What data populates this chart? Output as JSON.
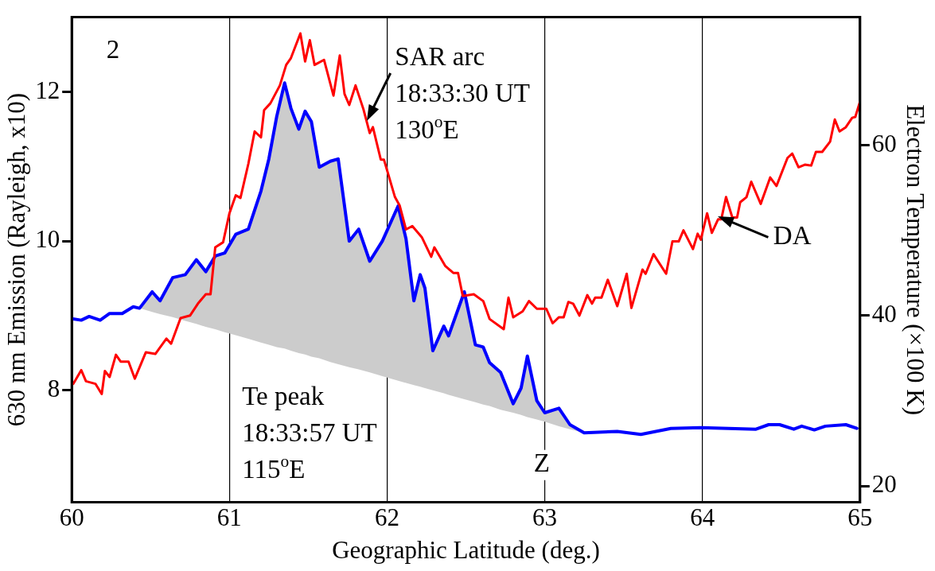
{
  "chart_data": {
    "type": "line",
    "xlabel": "Geographic Latitude (deg.)",
    "ylabel": "630 nm Emission (Rayleigh, x10)",
    "y2label": "Electron Temperature (×100 K)",
    "xlim": [
      60,
      65
    ],
    "xticks": [
      60,
      61,
      62,
      63,
      64,
      65
    ],
    "ylim": [
      6.5,
      13.0
    ],
    "yticks": [
      8,
      10,
      12
    ],
    "y2lim": [
      18.1,
      75.0
    ],
    "y2ticks": [
      20,
      40,
      60
    ],
    "grid": "x",
    "legend": false,
    "marker": "none",
    "line_style": "solid",
    "annotations": [
      "2",
      {
        "text": "SAR arc\n18:33:30 UT\n130$^{o}$E",
        "x": 61.87,
        "y": 11.61
      },
      "Te peak\n18:33:57 UT\n115$^{o}$E",
      "Z",
      {
        "text": "DA",
        "x": 64.1,
        "y": 10.33
      }
    ],
    "series": [
      {
        "color": "#0000ff",
        "axis": "y",
        "x": [
          60.0,
          60.06,
          60.11,
          60.18,
          60.24,
          60.32,
          60.39,
          60.43,
          60.51,
          60.56,
          60.64,
          60.72,
          60.79,
          60.85,
          60.91,
          60.97,
          61.04,
          61.12,
          61.2,
          61.25,
          61.3,
          61.35,
          61.39,
          61.44,
          61.48,
          61.52,
          61.57,
          61.64,
          61.69,
          61.76,
          61.82,
          61.89,
          61.97,
          62.07,
          62.12,
          62.17,
          62.21,
          62.24,
          62.29,
          62.36,
          62.39,
          62.49,
          62.56,
          62.61,
          62.65,
          62.72,
          62.8,
          62.85,
          62.89,
          62.95,
          63.0,
          63.09,
          63.16,
          63.25,
          63.46,
          63.61,
          63.8,
          63.99,
          64.34,
          64.42,
          64.49,
          64.58,
          64.63,
          64.71,
          64.78,
          64.91,
          64.98
        ],
        "values": [
          8.96,
          8.94,
          8.99,
          8.94,
          9.03,
          9.03,
          9.12,
          9.1,
          9.32,
          9.2,
          9.51,
          9.55,
          9.75,
          9.59,
          9.8,
          9.84,
          10.09,
          10.16,
          10.67,
          11.1,
          11.67,
          12.12,
          11.78,
          11.5,
          11.74,
          11.6,
          10.99,
          11.07,
          11.1,
          10.0,
          10.16,
          9.73,
          10.0,
          10.47,
          10.03,
          9.2,
          9.55,
          9.37,
          8.53,
          8.86,
          8.73,
          9.32,
          8.61,
          8.58,
          8.37,
          8.24,
          7.82,
          8.03,
          8.46,
          7.86,
          7.7,
          7.76,
          7.54,
          7.43,
          7.45,
          7.41,
          7.49,
          7.5,
          7.48,
          7.54,
          7.54,
          7.48,
          7.52,
          7.47,
          7.52,
          7.54,
          7.49
        ],
        "lower": [
          null,
          null,
          null,
          null,
          null,
          null,
          null,
          9.1,
          9.05,
          9.02,
          8.98,
          8.93,
          8.89,
          8.85,
          8.82,
          8.78,
          8.74,
          8.69,
          8.64,
          8.61,
          8.58,
          8.56,
          8.53,
          8.5,
          8.48,
          8.45,
          8.43,
          8.38,
          8.35,
          8.31,
          8.28,
          8.24,
          8.19,
          8.13,
          8.1,
          8.07,
          8.05,
          8.03,
          8.0,
          7.96,
          7.94,
          7.88,
          7.84,
          7.81,
          7.79,
          7.74,
          7.7,
          7.67,
          7.64,
          7.61,
          7.58,
          7.52,
          7.48,
          7.43,
          null,
          null,
          null,
          null,
          null,
          null,
          null,
          null,
          null,
          null,
          null,
          null,
          null
        ],
        "upper": [
          null,
          null,
          null,
          null,
          null,
          null,
          null,
          9.1,
          9.32,
          9.2,
          9.51,
          9.55,
          9.75,
          9.59,
          9.8,
          9.84,
          10.09,
          10.16,
          10.67,
          11.1,
          11.67,
          12.12,
          11.78,
          11.5,
          11.74,
          11.6,
          10.99,
          11.07,
          11.1,
          10.0,
          10.16,
          9.73,
          10.0,
          10.47,
          10.03,
          9.2,
          9.55,
          9.37,
          8.53,
          8.86,
          8.73,
          9.32,
          8.61,
          8.58,
          8.37,
          8.24,
          7.82,
          8.03,
          8.46,
          7.86,
          7.7,
          7.76,
          7.54,
          7.43,
          null,
          null,
          null,
          null,
          null,
          null,
          null,
          null,
          null,
          null,
          null,
          null,
          null
        ]
      },
      {
        "color": "#ff0000",
        "axis": "y2",
        "x": [
          60.01,
          60.06,
          60.09,
          60.15,
          60.19,
          60.21,
          60.24,
          60.28,
          60.31,
          60.36,
          60.4,
          60.47,
          60.53,
          60.6,
          60.63,
          60.69,
          60.75,
          60.8,
          60.85,
          60.88,
          60.91,
          60.96,
          61.0,
          61.04,
          61.07,
          61.12,
          61.16,
          61.2,
          61.22,
          61.26,
          61.32,
          61.36,
          61.39,
          61.45,
          61.48,
          61.51,
          61.54,
          61.6,
          61.66,
          61.7,
          61.73,
          61.76,
          61.8,
          61.85,
          61.89,
          61.91,
          61.96,
          61.98,
          62.05,
          62.08,
          62.12,
          62.16,
          62.22,
          62.28,
          62.3,
          62.37,
          62.42,
          62.45,
          62.48,
          62.55,
          62.61,
          62.65,
          62.74,
          62.77,
          62.8,
          62.86,
          62.9,
          62.95,
          63.01,
          63.05,
          63.09,
          63.12,
          63.15,
          63.18,
          63.22,
          63.27,
          63.3,
          63.32,
          63.36,
          63.4,
          63.46,
          63.52,
          63.55,
          63.62,
          63.64,
          63.69,
          63.77,
          63.81,
          63.85,
          63.88,
          63.94,
          63.97,
          63.99,
          64.03,
          64.06,
          64.1,
          64.12,
          64.15,
          64.19,
          64.22,
          64.24,
          64.28,
          64.31,
          64.37,
          64.43,
          64.47,
          64.54,
          64.57,
          64.61,
          64.65,
          64.69,
          64.72,
          64.76,
          64.81,
          64.84,
          64.87,
          64.91,
          64.95,
          64.97,
          65.0
        ],
        "values": [
          32.0,
          33.6,
          32.3,
          32.0,
          30.8,
          33.5,
          32.8,
          35.4,
          34.6,
          34.6,
          32.6,
          35.7,
          35.5,
          37.3,
          36.7,
          39.7,
          40.0,
          41.4,
          42.5,
          42.5,
          48.0,
          48.6,
          52.0,
          54.1,
          53.8,
          57.8,
          61.6,
          60.9,
          64.1,
          64.9,
          67.0,
          69.4,
          70.2,
          73.1,
          69.8,
          72.3,
          69.4,
          70.0,
          65.8,
          70.5,
          66.0,
          64.7,
          67.0,
          64.2,
          61.4,
          62.1,
          58.3,
          58.3,
          53.9,
          52.9,
          50.1,
          50.5,
          49.2,
          46.9,
          48.0,
          45.8,
          45.0,
          45.0,
          42.3,
          42.5,
          41.7,
          39.6,
          38.4,
          42.1,
          39.8,
          40.5,
          41.7,
          40.8,
          40.8,
          39.1,
          39.8,
          39.8,
          41.6,
          41.4,
          40.0,
          42.4,
          41.4,
          42.1,
          42.1,
          44.2,
          41.1,
          44.9,
          40.9,
          45.4,
          44.9,
          47.2,
          44.9,
          48.7,
          48.7,
          50.0,
          47.8,
          49.6,
          48.9,
          52.0,
          49.7,
          51.3,
          51.3,
          53.9,
          51.5,
          51.5,
          53.3,
          53.9,
          55.7,
          53.1,
          56.2,
          55.2,
          58.5,
          59.0,
          57.4,
          57.7,
          57.6,
          59.2,
          59.2,
          60.4,
          63.0,
          61.6,
          62.1,
          63.2,
          63.3,
          65.1
        ]
      }
    ]
  }
}
